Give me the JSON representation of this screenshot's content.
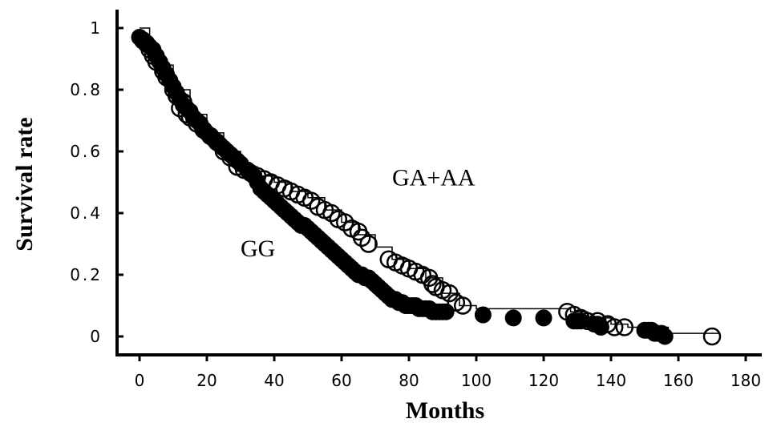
{
  "chart_data": {
    "type": "scatter",
    "xlabel": "Months",
    "ylabel": "Survival rate",
    "xlim": [
      0,
      180
    ],
    "ylim": [
      0,
      1
    ],
    "xticks": [
      "0",
      "20",
      "40",
      "60",
      "80",
      "100",
      "120",
      "140",
      "160",
      "180"
    ],
    "yticks": [
      "0",
      "0.2",
      "0.4",
      "0.6",
      "0.8",
      "1"
    ],
    "grid": false,
    "annotations": [
      {
        "text": "GA+AA",
        "x": 75,
        "y": 0.49
      },
      {
        "text": "GG",
        "x": 30,
        "y": 0.26
      }
    ],
    "series": [
      {
        "name": "GA+AA",
        "marker": "open-circle",
        "step": [
          [
            0,
            1.0
          ],
          [
            3,
            0.93
          ],
          [
            6,
            0.88
          ],
          [
            10,
            0.8
          ],
          [
            15,
            0.72
          ],
          [
            20,
            0.66
          ],
          [
            25,
            0.6
          ],
          [
            30,
            0.55
          ],
          [
            35,
            0.52
          ],
          [
            40,
            0.5
          ],
          [
            45,
            0.47
          ],
          [
            50,
            0.45
          ],
          [
            55,
            0.41
          ],
          [
            60,
            0.37
          ],
          [
            65,
            0.33
          ],
          [
            70,
            0.29
          ],
          [
            75,
            0.25
          ],
          [
            80,
            0.22
          ],
          [
            85,
            0.19
          ],
          [
            90,
            0.14
          ],
          [
            95,
            0.1
          ],
          [
            100,
            0.09
          ],
          [
            128,
            0.08
          ],
          [
            133,
            0.06
          ],
          [
            140,
            0.04
          ],
          [
            145,
            0.03
          ],
          [
            157,
            0.01
          ],
          [
            172,
            0.01
          ]
        ],
        "points": [
          [
            1,
            0.96
          ],
          [
            2,
            0.95
          ],
          [
            3,
            0.93
          ],
          [
            4,
            0.91
          ],
          [
            5,
            0.89
          ],
          [
            7,
            0.86
          ],
          [
            8,
            0.84
          ],
          [
            10,
            0.8
          ],
          [
            11,
            0.78
          ],
          [
            12,
            0.74
          ],
          [
            13,
            0.76
          ],
          [
            14,
            0.72
          ],
          [
            15,
            0.71
          ],
          [
            17,
            0.69
          ],
          [
            19,
            0.67
          ],
          [
            21,
            0.65
          ],
          [
            23,
            0.63
          ],
          [
            25,
            0.6
          ],
          [
            27,
            0.58
          ],
          [
            29,
            0.55
          ],
          [
            31,
            0.54
          ],
          [
            33,
            0.53
          ],
          [
            35,
            0.52
          ],
          [
            37,
            0.51
          ],
          [
            39,
            0.5
          ],
          [
            41,
            0.49
          ],
          [
            43,
            0.48
          ],
          [
            45,
            0.47
          ],
          [
            47,
            0.46
          ],
          [
            49,
            0.45
          ],
          [
            51,
            0.44
          ],
          [
            53,
            0.42
          ],
          [
            55,
            0.41
          ],
          [
            57,
            0.4
          ],
          [
            59,
            0.38
          ],
          [
            61,
            0.37
          ],
          [
            63,
            0.35
          ],
          [
            65,
            0.34
          ],
          [
            66,
            0.32
          ],
          [
            68,
            0.3
          ],
          [
            74,
            0.25
          ],
          [
            76,
            0.24
          ],
          [
            78,
            0.23
          ],
          [
            80,
            0.22
          ],
          [
            82,
            0.21
          ],
          [
            84,
            0.2
          ],
          [
            86,
            0.19
          ],
          [
            87,
            0.17
          ],
          [
            88,
            0.16
          ],
          [
            90,
            0.15
          ],
          [
            92,
            0.14
          ],
          [
            94,
            0.11
          ],
          [
            96,
            0.1
          ],
          [
            127,
            0.08
          ],
          [
            129,
            0.07
          ],
          [
            131,
            0.06
          ],
          [
            133,
            0.05
          ],
          [
            136,
            0.05
          ],
          [
            139,
            0.04
          ],
          [
            141,
            0.03
          ],
          [
            144,
            0.03
          ],
          [
            170,
            0.0
          ]
        ]
      },
      {
        "name": "GG",
        "marker": "filled-circle",
        "points": [
          [
            0,
            0.97
          ],
          [
            1,
            0.96
          ],
          [
            2,
            0.95
          ],
          [
            3,
            0.94
          ],
          [
            4,
            0.93
          ],
          [
            5,
            0.91
          ],
          [
            6,
            0.89
          ],
          [
            7,
            0.87
          ],
          [
            8,
            0.85
          ],
          [
            9,
            0.83
          ],
          [
            10,
            0.81
          ],
          [
            11,
            0.79
          ],
          [
            12,
            0.77
          ],
          [
            13,
            0.75
          ],
          [
            14,
            0.74
          ],
          [
            15,
            0.73
          ],
          [
            16,
            0.71
          ],
          [
            17,
            0.7
          ],
          [
            18,
            0.69
          ],
          [
            19,
            0.67
          ],
          [
            20,
            0.66
          ],
          [
            21,
            0.65
          ],
          [
            22,
            0.64
          ],
          [
            23,
            0.63
          ],
          [
            24,
            0.62
          ],
          [
            25,
            0.61
          ],
          [
            26,
            0.6
          ],
          [
            27,
            0.59
          ],
          [
            28,
            0.58
          ],
          [
            29,
            0.57
          ],
          [
            30,
            0.56
          ],
          [
            32,
            0.54
          ],
          [
            34,
            0.52
          ],
          [
            35,
            0.5
          ],
          [
            36,
            0.48
          ],
          [
            37,
            0.47
          ],
          [
            38,
            0.46
          ],
          [
            39,
            0.45
          ],
          [
            40,
            0.44
          ],
          [
            41,
            0.43
          ],
          [
            42,
            0.42
          ],
          [
            43,
            0.41
          ],
          [
            44,
            0.4
          ],
          [
            45,
            0.39
          ],
          [
            46,
            0.38
          ],
          [
            47,
            0.37
          ],
          [
            48,
            0.36
          ],
          [
            49,
            0.36
          ],
          [
            50,
            0.35
          ],
          [
            51,
            0.34
          ],
          [
            52,
            0.33
          ],
          [
            53,
            0.32
          ],
          [
            54,
            0.31
          ],
          [
            55,
            0.3
          ],
          [
            56,
            0.29
          ],
          [
            57,
            0.28
          ],
          [
            58,
            0.27
          ],
          [
            59,
            0.26
          ],
          [
            60,
            0.25
          ],
          [
            61,
            0.24
          ],
          [
            62,
            0.23
          ],
          [
            63,
            0.22
          ],
          [
            64,
            0.21
          ],
          [
            65,
            0.2
          ],
          [
            66,
            0.2
          ],
          [
            67,
            0.19
          ],
          [
            68,
            0.19
          ],
          [
            69,
            0.18
          ],
          [
            70,
            0.17
          ],
          [
            71,
            0.16
          ],
          [
            72,
            0.15
          ],
          [
            73,
            0.14
          ],
          [
            74,
            0.13
          ],
          [
            75,
            0.12
          ],
          [
            76,
            0.12
          ],
          [
            77,
            0.11
          ],
          [
            78,
            0.11
          ],
          [
            79,
            0.1
          ],
          [
            80,
            0.1
          ],
          [
            81,
            0.1
          ],
          [
            82,
            0.1
          ],
          [
            83,
            0.09
          ],
          [
            84,
            0.09
          ],
          [
            85,
            0.09
          ],
          [
            86,
            0.09
          ],
          [
            87,
            0.08
          ],
          [
            88,
            0.08
          ],
          [
            89,
            0.08
          ],
          [
            90,
            0.08
          ],
          [
            91,
            0.08
          ],
          [
            102,
            0.07
          ],
          [
            111,
            0.06
          ],
          [
            120,
            0.06
          ],
          [
            129,
            0.05
          ],
          [
            130,
            0.05
          ],
          [
            131,
            0.05
          ],
          [
            135,
            0.04
          ],
          [
            136,
            0.04
          ],
          [
            137,
            0.03
          ],
          [
            150,
            0.02
          ],
          [
            151,
            0.02
          ],
          [
            152,
            0.02
          ],
          [
            153,
            0.01
          ],
          [
            154,
            0.01
          ],
          [
            155,
            0.01
          ],
          [
            156,
            0.0
          ]
        ]
      }
    ]
  }
}
